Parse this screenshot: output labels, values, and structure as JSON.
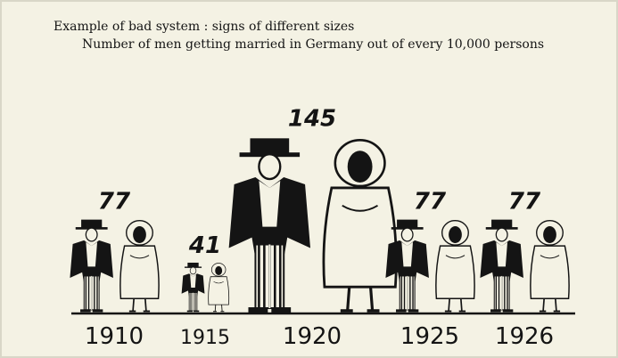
{
  "figure": {
    "title": "Example of bad system :  signs of different sizes",
    "subtitle": "Number of men getting married in Germany out of every 10,000 persons",
    "ink_color": "#141414",
    "paper_color": "#f4f2e4"
  },
  "chart_data": {
    "type": "bar",
    "title": "Example of bad system :  signs of different sizes",
    "subtitle": "Number of men getting married in Germany out of every 10,000 persons",
    "categories": [
      "1910",
      "1915",
      "1920",
      "1925",
      "1926"
    ],
    "values": [
      77,
      41,
      145,
      77,
      77
    ],
    "mark_style": "pictogram: groom and bride figures scaled to value",
    "value_labels_shown": true,
    "grid": false
  }
}
